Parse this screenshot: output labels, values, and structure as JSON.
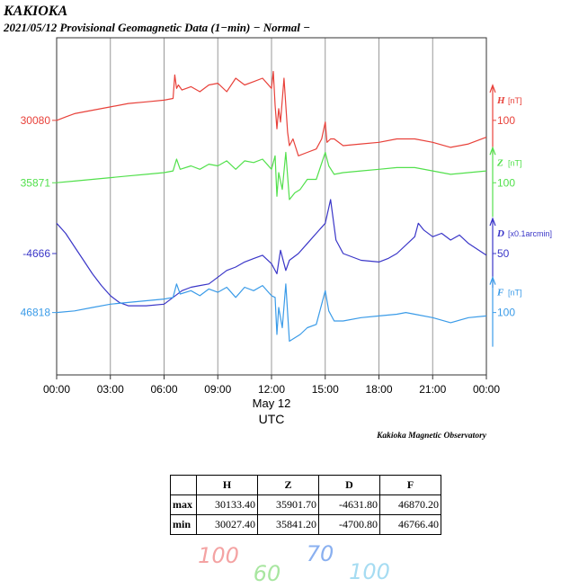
{
  "chart_data": {
    "type": "line",
    "title": "KAKIOKA",
    "subtitle": "2021/05/12  Provisional Geomagnetic Data (1−min)  − Normal −",
    "xlabel": "UTC",
    "xdate": "May 12",
    "xticks": [
      "00:00",
      "03:00",
      "06:00",
      "09:00",
      "12:00",
      "15:00",
      "18:00",
      "21:00",
      "00:00"
    ],
    "xlim": [
      0,
      24
    ],
    "ylim": [
      0,
      10
    ],
    "credit": "Kakioka Magnetic Observatory",
    "series": [
      {
        "name": "H",
        "unit": "[nT]",
        "base": "30080",
        "scale": "100",
        "color": "#e8413a",
        "base_level": 7.55,
        "x": [
          0,
          0.5,
          1,
          2,
          3,
          4,
          5,
          6,
          6.5,
          6.6,
          6.7,
          6.8,
          7,
          7.5,
          8,
          8.5,
          9,
          9.5,
          10,
          10.5,
          11,
          11.5,
          12,
          12.1,
          12.2,
          12.3,
          12.4,
          12.5,
          12.7,
          12.9,
          13,
          13.2,
          13.5,
          14,
          14.5,
          14.8,
          15,
          15.1,
          15.3,
          15.5,
          16,
          17,
          18,
          19,
          20,
          21,
          22,
          23,
          24
        ],
        "y": [
          7.55,
          7.65,
          7.75,
          7.85,
          7.95,
          8.05,
          8.1,
          8.15,
          8.2,
          8.9,
          8.5,
          8.6,
          8.45,
          8.55,
          8.4,
          8.6,
          8.65,
          8.4,
          8.8,
          8.6,
          8.7,
          8.8,
          8.5,
          9.0,
          8.0,
          7.3,
          7.9,
          7.5,
          8.8,
          7.2,
          6.8,
          7.0,
          6.5,
          6.6,
          6.7,
          7.0,
          7.5,
          6.9,
          7.0,
          7.0,
          6.8,
          6.85,
          6.9,
          7.0,
          7.0,
          6.9,
          6.75,
          6.85,
          7.05
        ]
      },
      {
        "name": "Z",
        "unit": "[nT]",
        "base": "35871",
        "scale": "100",
        "color": "#52e04c",
        "base_level": 5.7,
        "x": [
          0,
          1,
          2,
          3,
          4,
          5,
          6,
          6.5,
          6.7,
          6.9,
          7.5,
          8,
          8.5,
          9,
          9.5,
          10,
          10.5,
          11,
          11.5,
          12,
          12.2,
          12.3,
          12.4,
          12.6,
          12.8,
          13,
          13.3,
          13.6,
          14,
          14.5,
          15,
          15.2,
          15.5,
          16,
          17,
          18,
          19,
          20,
          21,
          22,
          23,
          24
        ],
        "y": [
          5.7,
          5.75,
          5.8,
          5.85,
          5.9,
          5.95,
          6.0,
          6.05,
          6.4,
          6.1,
          6.2,
          6.1,
          6.25,
          6.2,
          6.35,
          6.1,
          6.35,
          6.3,
          6.4,
          6.1,
          6.5,
          5.3,
          6.0,
          5.5,
          6.6,
          5.2,
          5.4,
          5.5,
          5.8,
          5.8,
          6.6,
          6.2,
          5.95,
          6.0,
          6.05,
          6.1,
          6.15,
          6.15,
          6.05,
          5.95,
          6.0,
          6.05
        ]
      },
      {
        "name": "D",
        "unit": "[x0.1arcmin]",
        "base": "-4666",
        "scale": "50",
        "color": "#3a36c8",
        "base_level": 3.6,
        "x": [
          0,
          0.5,
          1,
          1.5,
          2,
          2.5,
          3,
          3.5,
          4,
          5,
          6,
          6.5,
          7,
          7.5,
          8,
          8.5,
          9,
          9.5,
          10,
          10.5,
          11,
          11.5,
          12,
          12.3,
          12.5,
          12.8,
          13,
          13.5,
          14,
          14.5,
          15,
          15.3,
          15.6,
          16,
          17,
          18,
          18.5,
          19,
          20,
          20.2,
          20.5,
          21,
          21.5,
          22,
          22.5,
          23,
          24
        ],
        "y": [
          4.5,
          4.2,
          3.8,
          3.4,
          3.0,
          2.65,
          2.35,
          2.15,
          2.05,
          2.05,
          2.1,
          2.3,
          2.5,
          2.6,
          2.65,
          2.7,
          2.9,
          3.1,
          3.2,
          3.35,
          3.45,
          3.55,
          3.3,
          3.0,
          3.7,
          3.1,
          3.4,
          3.6,
          3.9,
          4.2,
          4.5,
          5.2,
          4.0,
          3.6,
          3.4,
          3.35,
          3.45,
          3.6,
          4.1,
          4.5,
          4.3,
          4.1,
          4.2,
          4.0,
          4.15,
          3.9,
          3.55
        ]
      },
      {
        "name": "F",
        "unit": "[nT]",
        "base": "46818",
        "scale": "100",
        "color": "#3a9be8",
        "base_level": 1.85,
        "x": [
          0,
          1,
          2,
          3,
          4,
          5,
          6,
          6.5,
          6.7,
          6.9,
          7.5,
          8,
          8.5,
          9,
          9.5,
          10,
          10.5,
          11,
          11.5,
          12,
          12.2,
          12.3,
          12.4,
          12.6,
          12.8,
          13,
          13.3,
          13.6,
          14,
          14.5,
          15,
          15.2,
          15.5,
          16,
          17,
          18,
          19,
          19.5,
          20,
          21,
          22,
          23,
          24
        ],
        "y": [
          1.85,
          1.9,
          2.0,
          2.1,
          2.15,
          2.2,
          2.25,
          2.3,
          2.7,
          2.4,
          2.5,
          2.35,
          2.55,
          2.45,
          2.6,
          2.3,
          2.6,
          2.5,
          2.65,
          2.35,
          2.3,
          1.2,
          2.0,
          1.4,
          2.7,
          1.0,
          1.1,
          1.2,
          1.4,
          1.5,
          2.5,
          1.9,
          1.6,
          1.6,
          1.7,
          1.75,
          1.8,
          1.85,
          1.8,
          1.7,
          1.55,
          1.7,
          1.75
        ]
      }
    ]
  },
  "table": {
    "headers": [
      "",
      "H",
      "Z",
      "D",
      "F"
    ],
    "rows": [
      {
        "label": "max",
        "values": [
          "30133.40",
          "35901.70",
          "-4631.80",
          "46870.20"
        ]
      },
      {
        "label": "min",
        "values": [
          "30027.40",
          "35841.20",
          "-4700.80",
          "46766.40"
        ]
      }
    ]
  },
  "handwritten": [
    {
      "text": "100",
      "color": "#f4a3a3"
    },
    {
      "text": "60",
      "color": "#a8e6a0"
    },
    {
      "text": "70",
      "color": "#8ab0f0"
    },
    {
      "text": "100",
      "color": "#a6dcf2"
    }
  ]
}
